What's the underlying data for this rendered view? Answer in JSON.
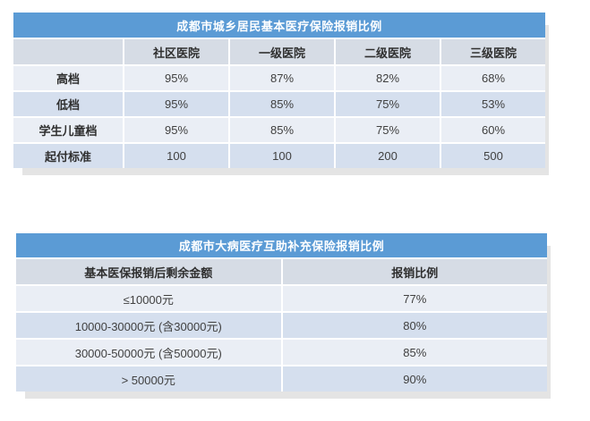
{
  "colors": {
    "title_bar": "#5B9BD5",
    "header_row": "#D6DCE5",
    "row_light": "#EAEEF5",
    "row_dark": "#D5DFEE",
    "title_text": "#FFFFFF",
    "value_text": "#404040",
    "shadow": "#E4E4E4",
    "page_bg": "#FFFFFF"
  },
  "tables": [
    {
      "title": "成都市城乡居民基本医疗保险报销比例",
      "columns": [
        "",
        "社区医院",
        "一级医院",
        "二级医院",
        "三级医院"
      ],
      "rows": [
        {
          "label": "高档",
          "values": [
            "95%",
            "87%",
            "82%",
            "68%"
          ]
        },
        {
          "label": "低档",
          "values": [
            "95%",
            "85%",
            "75%",
            "53%"
          ]
        },
        {
          "label": "学生儿童档",
          "values": [
            "95%",
            "85%",
            "75%",
            "60%"
          ]
        },
        {
          "label": "起付标准",
          "values": [
            "100",
            "100",
            "200",
            "500"
          ]
        }
      ]
    },
    {
      "title": "成都市大病医疗互助补充保险报销比例",
      "columns": [
        "基本医保报销后剩余金额",
        "报销比例"
      ],
      "rows": [
        {
          "label": "≤10000元",
          "values": [
            "77%"
          ]
        },
        {
          "label": "10000-30000元 (含30000元)",
          "values": [
            "80%"
          ]
        },
        {
          "label": "30000-50000元 (含50000元)",
          "values": [
            "85%"
          ]
        },
        {
          "label": "> 50000元",
          "values": [
            "90%"
          ]
        }
      ]
    }
  ]
}
